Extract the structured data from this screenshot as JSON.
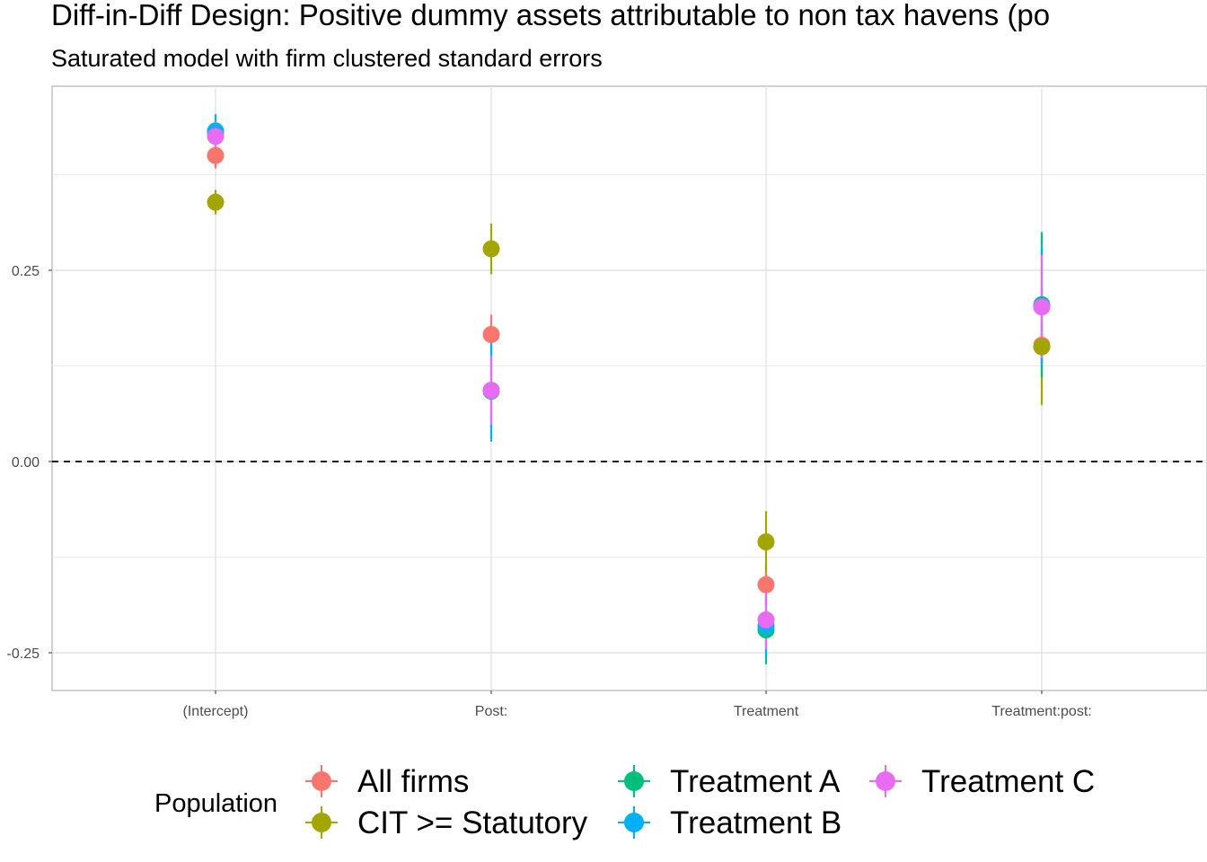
{
  "chart_data": {
    "type": "scatter",
    "title": "Diff-in-Diff Design: Positive dummy assets attributable to non tax havens (po",
    "subtitle": "Saturated model with firm clustered standard errors",
    "xlabel": "",
    "ylabel": "",
    "categories": [
      "(Intercept)",
      "Post:",
      "Treatment",
      "Treatment:post:"
    ],
    "ylim": [
      -0.3,
      0.5
    ],
    "yticks": [
      -0.25,
      0.0,
      0.25
    ],
    "ytick_labels": [
      "-0.25",
      "0.00",
      "0.25"
    ],
    "reference_line": {
      "y": 0,
      "style": "dashed"
    },
    "grid": true,
    "legend": {
      "title": "Population",
      "position": "bottom"
    },
    "series": [
      {
        "name": "All firms",
        "color": "#F8766D",
        "values": [
          0.4,
          0.166,
          -0.161,
          0.152
        ],
        "lower": [
          0.383,
          0.14,
          -0.188,
          0.12
        ],
        "upper": [
          0.417,
          0.192,
          -0.134,
          0.184
        ]
      },
      {
        "name": "CIT >= Statutory",
        "color": "#A3A500",
        "values": [
          0.339,
          0.278,
          -0.105,
          0.15
        ],
        "lower": [
          0.323,
          0.245,
          -0.145,
          0.074
        ],
        "upper": [
          0.355,
          0.311,
          -0.065,
          0.226
        ]
      },
      {
        "name": "Treatment A",
        "color": "#00BF7D",
        "values": [
          0.429,
          0.092,
          -0.22,
          0.205
        ],
        "lower": [
          0.408,
          0.032,
          -0.265,
          0.11
        ],
        "upper": [
          0.45,
          0.152,
          -0.175,
          0.3
        ]
      },
      {
        "name": "Treatment B",
        "color": "#00B0F6",
        "values": [
          0.432,
          0.093,
          -0.215,
          0.203
        ],
        "lower": [
          0.41,
          0.026,
          -0.255,
          0.125
        ],
        "upper": [
          0.454,
          0.16,
          -0.175,
          0.281
        ]
      },
      {
        "name": "Treatment C",
        "color": "#E76BF3",
        "values": [
          0.425,
          0.093,
          -0.207,
          0.202
        ],
        "lower": [
          0.405,
          0.048,
          -0.245,
          0.135
        ],
        "upper": [
          0.445,
          0.138,
          -0.169,
          0.27
        ]
      }
    ]
  }
}
